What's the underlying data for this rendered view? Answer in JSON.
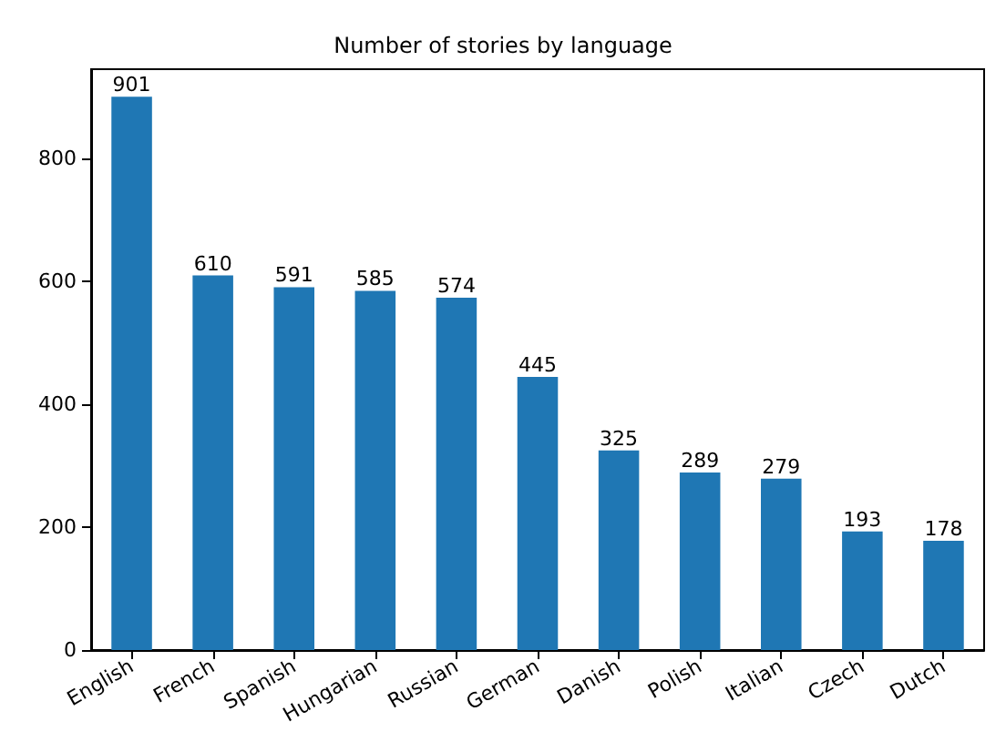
{
  "chart_data": {
    "type": "bar",
    "title": "Number of stories by language",
    "categories": [
      "English",
      "French",
      "Spanish",
      "Hungarian",
      "Russian",
      "German",
      "Danish",
      "Polish",
      "Italian",
      "Czech",
      "Dutch"
    ],
    "values": [
      901,
      610,
      591,
      585,
      574,
      445,
      325,
      289,
      279,
      193,
      178
    ],
    "color": "#1f77b4",
    "ylim": [
      0,
      946
    ],
    "yticks": [
      0,
      200,
      400,
      600,
      800
    ],
    "grid": false,
    "data_labels": true
  }
}
